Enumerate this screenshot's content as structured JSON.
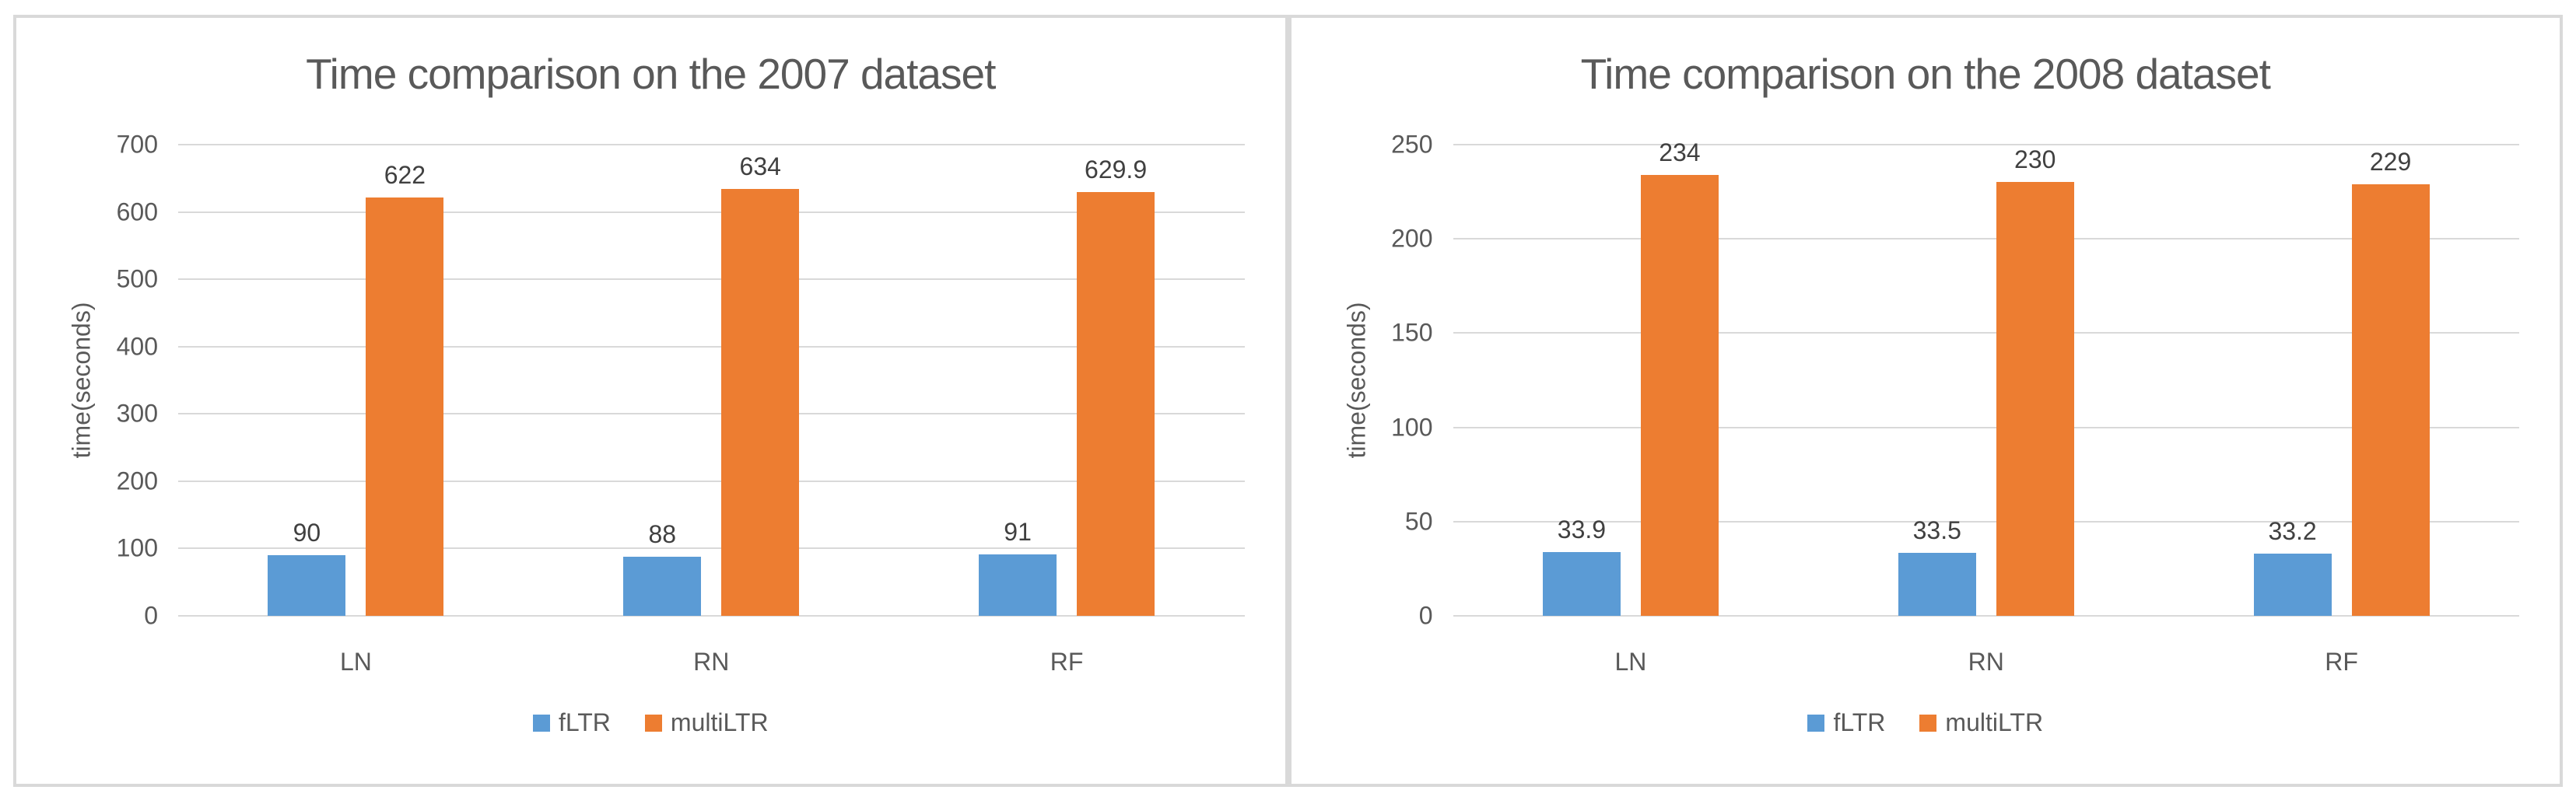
{
  "page": {
    "background": "#ffffff",
    "panel_border_color": "#d9d9d9"
  },
  "colors": {
    "fltr_blue": "#5b9bd5",
    "multiltr_orange": "#ed7d31",
    "gridline": "#d9d9d9",
    "axis_text": "#595959",
    "data_label_text": "#404040",
    "title_text": "#595959"
  },
  "chart_data": [
    {
      "type": "bar",
      "title": "Time comparison on the 2007 dataset",
      "xlabel": "",
      "ylabel": "time(seconds)",
      "categories": [
        "LN",
        "RN",
        "RF"
      ],
      "series": [
        {
          "name": "fLTR",
          "color": "#5b9bd5",
          "values": [
            90,
            88,
            91
          ],
          "labels": [
            "90",
            "88",
            "91"
          ]
        },
        {
          "name": "multiLTR",
          "color": "#ed7d31",
          "values": [
            622,
            634,
            629.9
          ],
          "labels": [
            "622",
            "634",
            "629.9"
          ]
        }
      ],
      "ylim": [
        0,
        700
      ],
      "ytick_step": 100,
      "ytick_labels": [
        "0",
        "100",
        "200",
        "300",
        "400",
        "500",
        "600",
        "700"
      ],
      "grid": true,
      "legend_position": "bottom"
    },
    {
      "type": "bar",
      "title": "Time comparison on the 2008 dataset",
      "xlabel": "",
      "ylabel": "time(seconds)",
      "categories": [
        "LN",
        "RN",
        "RF"
      ],
      "series": [
        {
          "name": "fLTR",
          "color": "#5b9bd5",
          "values": [
            33.9,
            33.5,
            33.2
          ],
          "labels": [
            "33.9",
            "33.5",
            "33.2"
          ]
        },
        {
          "name": "multiLTR",
          "color": "#ed7d31",
          "values": [
            234,
            230,
            229
          ],
          "labels": [
            "234",
            "230",
            "229"
          ]
        }
      ],
      "ylim": [
        0,
        250
      ],
      "ytick_step": 50,
      "ytick_labels": [
        "0",
        "50",
        "100",
        "150",
        "200",
        "250"
      ],
      "grid": true,
      "legend_position": "bottom"
    }
  ]
}
